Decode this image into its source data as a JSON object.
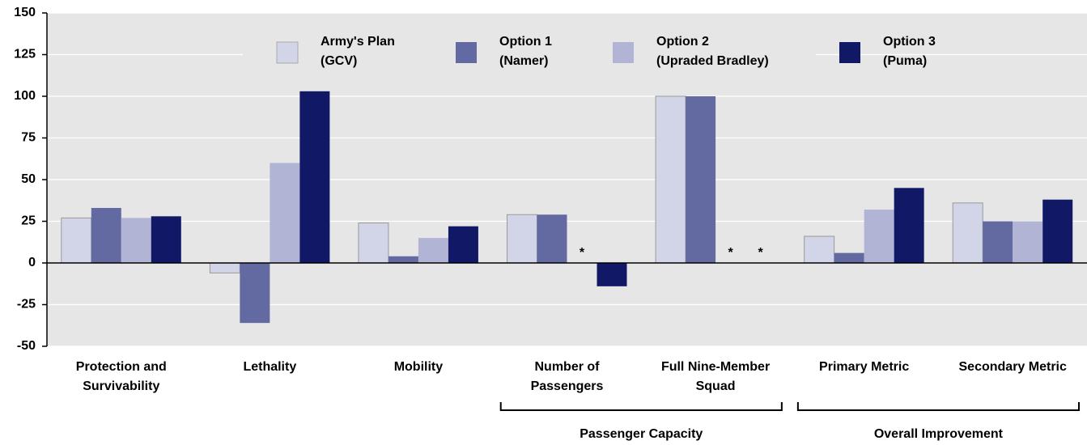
{
  "chart_data": {
    "type": "bar",
    "categories": [
      "Protection and\nSurvivability",
      "Lethality",
      "Mobility",
      "Number of\nPassengers",
      "Full Nine-Member\nSquad",
      "Primary Metric",
      "Secondary Metric"
    ],
    "series": [
      {
        "name": "Army's Plan\n(GCV)",
        "color": "#d2d5e7",
        "values": [
          27,
          -6,
          24,
          29,
          100,
          16,
          36
        ]
      },
      {
        "name": "Option 1\n(Namer)",
        "color": "#636aa1",
        "values": [
          33,
          -36,
          4,
          29,
          100,
          6,
          25
        ]
      },
      {
        "name": "Option 2\n(Upraded Bradley)",
        "color": "#b1b4d4",
        "values": [
          27,
          60,
          15,
          null,
          null,
          32,
          25
        ]
      },
      {
        "name": "Option 3\n(Puma)",
        "color": "#111966",
        "values": [
          28,
          103,
          22,
          -14,
          null,
          45,
          38
        ]
      }
    ],
    "missing_marker": "*",
    "groups": [
      {
        "label": "Passenger Capacity",
        "categories": [
          3,
          4
        ]
      },
      {
        "label": "Overall Improvement",
        "categories": [
          5,
          6
        ]
      }
    ],
    "ylim": [
      -50,
      150
    ],
    "yticks": [
      -50,
      -25,
      0,
      25,
      50,
      75,
      100,
      125,
      150
    ],
    "grid": true
  }
}
